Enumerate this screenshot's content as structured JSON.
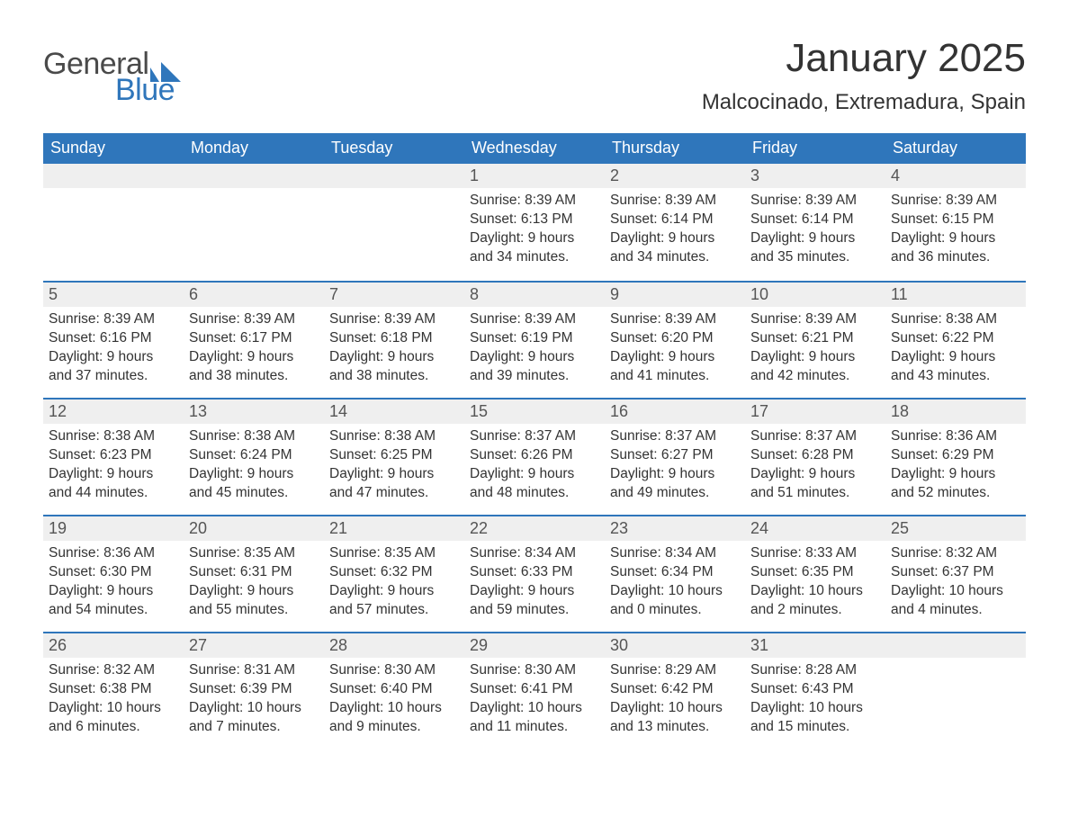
{
  "logo": {
    "text_general": "General",
    "text_blue": "Blue",
    "mark_color": "#2f76bb"
  },
  "title": "January 2025",
  "location": "Malcocinado, Extremadura, Spain",
  "colors": {
    "header_bg": "#2f76bb",
    "header_text": "#ffffff",
    "daynum_bg": "#efefef",
    "row_divider": "#2f76bb",
    "body_text": "#333333",
    "page_bg": "#ffffff"
  },
  "typography": {
    "title_fontsize": 44,
    "location_fontsize": 24,
    "weekday_fontsize": 18,
    "daynum_fontsize": 18,
    "body_fontsize": 15.5
  },
  "weekdays": [
    "Sunday",
    "Monday",
    "Tuesday",
    "Wednesday",
    "Thursday",
    "Friday",
    "Saturday"
  ],
  "weeks": [
    [
      null,
      null,
      null,
      {
        "n": "1",
        "sunrise": "Sunrise: 8:39 AM",
        "sunset": "Sunset: 6:13 PM",
        "daylight": "Daylight: 9 hours and 34 minutes."
      },
      {
        "n": "2",
        "sunrise": "Sunrise: 8:39 AM",
        "sunset": "Sunset: 6:14 PM",
        "daylight": "Daylight: 9 hours and 34 minutes."
      },
      {
        "n": "3",
        "sunrise": "Sunrise: 8:39 AM",
        "sunset": "Sunset: 6:14 PM",
        "daylight": "Daylight: 9 hours and 35 minutes."
      },
      {
        "n": "4",
        "sunrise": "Sunrise: 8:39 AM",
        "sunset": "Sunset: 6:15 PM",
        "daylight": "Daylight: 9 hours and 36 minutes."
      }
    ],
    [
      {
        "n": "5",
        "sunrise": "Sunrise: 8:39 AM",
        "sunset": "Sunset: 6:16 PM",
        "daylight": "Daylight: 9 hours and 37 minutes."
      },
      {
        "n": "6",
        "sunrise": "Sunrise: 8:39 AM",
        "sunset": "Sunset: 6:17 PM",
        "daylight": "Daylight: 9 hours and 38 minutes."
      },
      {
        "n": "7",
        "sunrise": "Sunrise: 8:39 AM",
        "sunset": "Sunset: 6:18 PM",
        "daylight": "Daylight: 9 hours and 38 minutes."
      },
      {
        "n": "8",
        "sunrise": "Sunrise: 8:39 AM",
        "sunset": "Sunset: 6:19 PM",
        "daylight": "Daylight: 9 hours and 39 minutes."
      },
      {
        "n": "9",
        "sunrise": "Sunrise: 8:39 AM",
        "sunset": "Sunset: 6:20 PM",
        "daylight": "Daylight: 9 hours and 41 minutes."
      },
      {
        "n": "10",
        "sunrise": "Sunrise: 8:39 AM",
        "sunset": "Sunset: 6:21 PM",
        "daylight": "Daylight: 9 hours and 42 minutes."
      },
      {
        "n": "11",
        "sunrise": "Sunrise: 8:38 AM",
        "sunset": "Sunset: 6:22 PM",
        "daylight": "Daylight: 9 hours and 43 minutes."
      }
    ],
    [
      {
        "n": "12",
        "sunrise": "Sunrise: 8:38 AM",
        "sunset": "Sunset: 6:23 PM",
        "daylight": "Daylight: 9 hours and 44 minutes."
      },
      {
        "n": "13",
        "sunrise": "Sunrise: 8:38 AM",
        "sunset": "Sunset: 6:24 PM",
        "daylight": "Daylight: 9 hours and 45 minutes."
      },
      {
        "n": "14",
        "sunrise": "Sunrise: 8:38 AM",
        "sunset": "Sunset: 6:25 PM",
        "daylight": "Daylight: 9 hours and 47 minutes."
      },
      {
        "n": "15",
        "sunrise": "Sunrise: 8:37 AM",
        "sunset": "Sunset: 6:26 PM",
        "daylight": "Daylight: 9 hours and 48 minutes."
      },
      {
        "n": "16",
        "sunrise": "Sunrise: 8:37 AM",
        "sunset": "Sunset: 6:27 PM",
        "daylight": "Daylight: 9 hours and 49 minutes."
      },
      {
        "n": "17",
        "sunrise": "Sunrise: 8:37 AM",
        "sunset": "Sunset: 6:28 PM",
        "daylight": "Daylight: 9 hours and 51 minutes."
      },
      {
        "n": "18",
        "sunrise": "Sunrise: 8:36 AM",
        "sunset": "Sunset: 6:29 PM",
        "daylight": "Daylight: 9 hours and 52 minutes."
      }
    ],
    [
      {
        "n": "19",
        "sunrise": "Sunrise: 8:36 AM",
        "sunset": "Sunset: 6:30 PM",
        "daylight": "Daylight: 9 hours and 54 minutes."
      },
      {
        "n": "20",
        "sunrise": "Sunrise: 8:35 AM",
        "sunset": "Sunset: 6:31 PM",
        "daylight": "Daylight: 9 hours and 55 minutes."
      },
      {
        "n": "21",
        "sunrise": "Sunrise: 8:35 AM",
        "sunset": "Sunset: 6:32 PM",
        "daylight": "Daylight: 9 hours and 57 minutes."
      },
      {
        "n": "22",
        "sunrise": "Sunrise: 8:34 AM",
        "sunset": "Sunset: 6:33 PM",
        "daylight": "Daylight: 9 hours and 59 minutes."
      },
      {
        "n": "23",
        "sunrise": "Sunrise: 8:34 AM",
        "sunset": "Sunset: 6:34 PM",
        "daylight": "Daylight: 10 hours and 0 minutes."
      },
      {
        "n": "24",
        "sunrise": "Sunrise: 8:33 AM",
        "sunset": "Sunset: 6:35 PM",
        "daylight": "Daylight: 10 hours and 2 minutes."
      },
      {
        "n": "25",
        "sunrise": "Sunrise: 8:32 AM",
        "sunset": "Sunset: 6:37 PM",
        "daylight": "Daylight: 10 hours and 4 minutes."
      }
    ],
    [
      {
        "n": "26",
        "sunrise": "Sunrise: 8:32 AM",
        "sunset": "Sunset: 6:38 PM",
        "daylight": "Daylight: 10 hours and 6 minutes."
      },
      {
        "n": "27",
        "sunrise": "Sunrise: 8:31 AM",
        "sunset": "Sunset: 6:39 PM",
        "daylight": "Daylight: 10 hours and 7 minutes."
      },
      {
        "n": "28",
        "sunrise": "Sunrise: 8:30 AM",
        "sunset": "Sunset: 6:40 PM",
        "daylight": "Daylight: 10 hours and 9 minutes."
      },
      {
        "n": "29",
        "sunrise": "Sunrise: 8:30 AM",
        "sunset": "Sunset: 6:41 PM",
        "daylight": "Daylight: 10 hours and 11 minutes."
      },
      {
        "n": "30",
        "sunrise": "Sunrise: 8:29 AM",
        "sunset": "Sunset: 6:42 PM",
        "daylight": "Daylight: 10 hours and 13 minutes."
      },
      {
        "n": "31",
        "sunrise": "Sunrise: 8:28 AM",
        "sunset": "Sunset: 6:43 PM",
        "daylight": "Daylight: 10 hours and 15 minutes."
      },
      null
    ]
  ]
}
